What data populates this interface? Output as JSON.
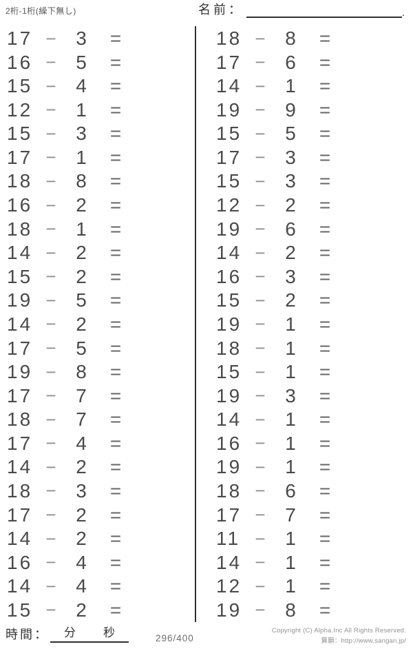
{
  "header": {
    "title": "2桁-1桁(繰下無し)",
    "name_label": "名前：",
    "name_line_end": "."
  },
  "operators": {
    "minus": "−",
    "equals": "="
  },
  "columns": {
    "left": [
      {
        "a": 17,
        "b": 3
      },
      {
        "a": 16,
        "b": 5
      },
      {
        "a": 15,
        "b": 4
      },
      {
        "a": 12,
        "b": 1
      },
      {
        "a": 15,
        "b": 3
      },
      {
        "a": 17,
        "b": 1
      },
      {
        "a": 18,
        "b": 8
      },
      {
        "a": 16,
        "b": 2
      },
      {
        "a": 18,
        "b": 1
      },
      {
        "a": 14,
        "b": 2
      },
      {
        "a": 15,
        "b": 2
      },
      {
        "a": 19,
        "b": 5
      },
      {
        "a": 14,
        "b": 2
      },
      {
        "a": 17,
        "b": 5
      },
      {
        "a": 19,
        "b": 8
      },
      {
        "a": 17,
        "b": 7
      },
      {
        "a": 18,
        "b": 7
      },
      {
        "a": 17,
        "b": 4
      },
      {
        "a": 14,
        "b": 2
      },
      {
        "a": 18,
        "b": 3
      },
      {
        "a": 17,
        "b": 2
      },
      {
        "a": 14,
        "b": 2
      },
      {
        "a": 16,
        "b": 4
      },
      {
        "a": 14,
        "b": 4
      },
      {
        "a": 15,
        "b": 2
      }
    ],
    "right": [
      {
        "a": 18,
        "b": 8
      },
      {
        "a": 17,
        "b": 6
      },
      {
        "a": 14,
        "b": 1
      },
      {
        "a": 19,
        "b": 9
      },
      {
        "a": 15,
        "b": 5
      },
      {
        "a": 17,
        "b": 3
      },
      {
        "a": 15,
        "b": 3
      },
      {
        "a": 12,
        "b": 2
      },
      {
        "a": 19,
        "b": 6
      },
      {
        "a": 14,
        "b": 2
      },
      {
        "a": 16,
        "b": 3
      },
      {
        "a": 15,
        "b": 2
      },
      {
        "a": 19,
        "b": 1
      },
      {
        "a": 18,
        "b": 1
      },
      {
        "a": 15,
        "b": 1
      },
      {
        "a": 19,
        "b": 3
      },
      {
        "a": 14,
        "b": 1
      },
      {
        "a": 16,
        "b": 1
      },
      {
        "a": 19,
        "b": 1
      },
      {
        "a": 18,
        "b": 6
      },
      {
        "a": 17,
        "b": 7
      },
      {
        "a": 11,
        "b": 1
      },
      {
        "a": 14,
        "b": 1
      },
      {
        "a": 12,
        "b": 1
      },
      {
        "a": 19,
        "b": 8
      }
    ]
  },
  "footer": {
    "time_label": "時間：",
    "minutes_label": "分",
    "seconds_label": "秒",
    "page_indicator": "296/400",
    "copyright_line1": "Copyright (C) Alpha.Inc All Rights Reserved.",
    "copyright_line2": "算願：http://www.sangan.jp/"
  },
  "colors": {
    "digit": "#4a4a4a",
    "minus": "#8f8f8f",
    "equals": "#666666",
    "line": "#2f2f2f",
    "muted": "#929292",
    "paper": "#ffffff"
  }
}
